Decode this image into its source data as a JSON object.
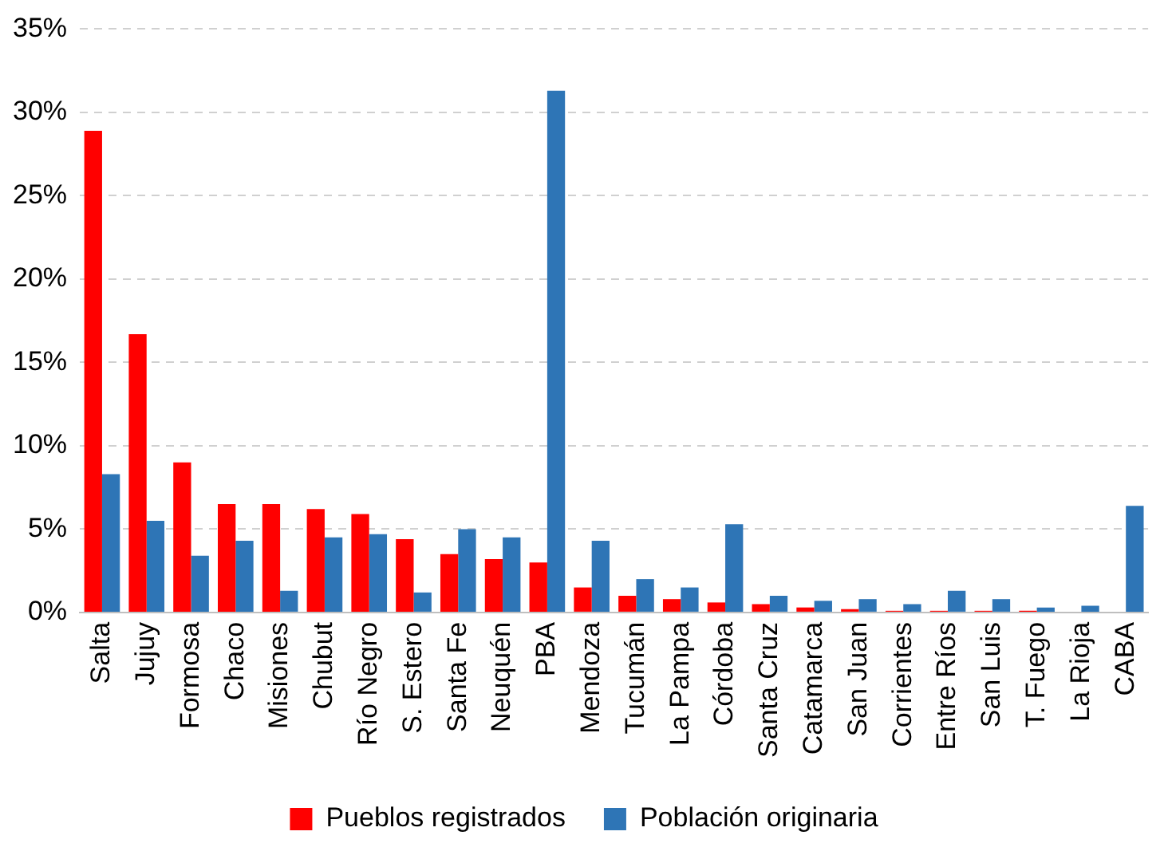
{
  "chart_data": {
    "type": "bar",
    "categories": [
      "Salta",
      "Jujuy",
      "Formosa",
      "Chaco",
      "Misiones",
      "Chubut",
      "Río Negro",
      "S. Estero",
      "Santa Fe",
      "Neuquén",
      "PBA",
      "Mendoza",
      "Tucumán",
      "La Pampa",
      "Córdoba",
      "Santa Cruz",
      "Catamarca",
      "San Juan",
      "Corrientes",
      "Entre Ríos",
      "San Luis",
      "T. Fuego",
      "La Rioja",
      "CABA"
    ],
    "series": [
      {
        "name": "Pueblos registrados",
        "color": "#ff0000",
        "values": [
          28.9,
          16.7,
          9.0,
          6.5,
          6.5,
          6.2,
          5.9,
          4.4,
          3.5,
          3.2,
          3.0,
          1.5,
          1.0,
          0.8,
          0.6,
          0.5,
          0.3,
          0.2,
          0.1,
          0.1,
          0.1,
          0.1,
          0,
          0
        ]
      },
      {
        "name": "Población originaria",
        "color": "#2e75b6",
        "values": [
          8.3,
          5.5,
          3.4,
          4.3,
          1.3,
          4.5,
          4.7,
          1.2,
          5.0,
          4.5,
          31.3,
          4.3,
          2.0,
          1.5,
          5.3,
          1.0,
          0.7,
          0.8,
          0.5,
          1.3,
          0.8,
          0.3,
          0.4,
          6.4
        ]
      }
    ],
    "ylim": [
      0,
      35
    ],
    "yticks": [
      {
        "value": 0,
        "label": "0%"
      },
      {
        "value": 5,
        "label": "5%"
      },
      {
        "value": 10,
        "label": "10%"
      },
      {
        "value": 15,
        "label": "15%"
      },
      {
        "value": 20,
        "label": "20%"
      },
      {
        "value": 25,
        "label": "25%"
      },
      {
        "value": 30,
        "label": "30%"
      },
      {
        "value": 35,
        "label": "35%"
      }
    ],
    "grid": "y",
    "legend": "bottom"
  }
}
